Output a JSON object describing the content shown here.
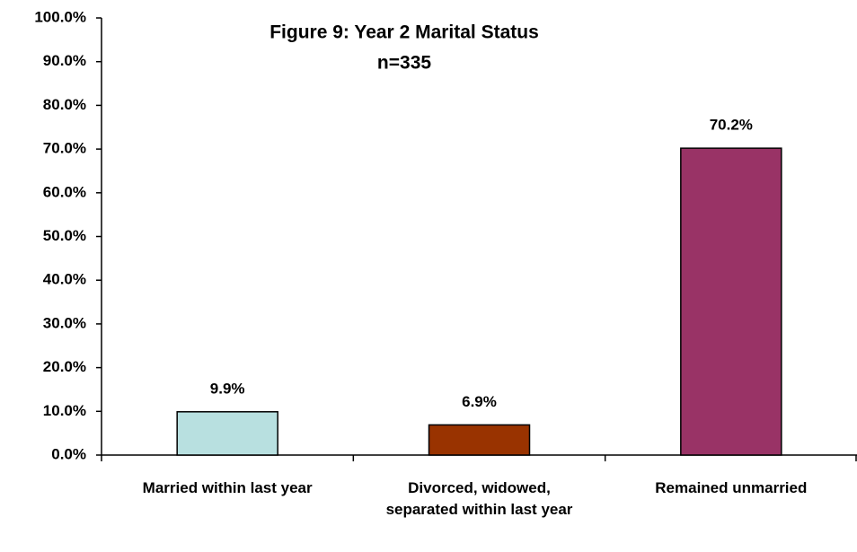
{
  "chart_data": {
    "type": "bar",
    "title": "Figure 9: Year 2 Marital Status",
    "subtitle": "n=335",
    "categories": [
      "Married within last year",
      "Divorced, widowed, separated within last year",
      "Remained unmarried"
    ],
    "values": [
      9.9,
      6.9,
      70.2
    ],
    "value_labels": [
      "9.9%",
      "6.9%",
      "70.2%"
    ],
    "colors": [
      "#b8e0e0",
      "#993300",
      "#993366"
    ],
    "ylim": [
      0,
      100
    ],
    "yticks": [
      {
        "value": 0,
        "label": "0.0%"
      },
      {
        "value": 10,
        "label": "10.0%"
      },
      {
        "value": 20,
        "label": "20.0%"
      },
      {
        "value": 30,
        "label": "30.0%"
      },
      {
        "value": 40,
        "label": "40.0%"
      },
      {
        "value": 50,
        "label": "50.0%"
      },
      {
        "value": 60,
        "label": "60.0%"
      },
      {
        "value": 70,
        "label": "70.0%"
      },
      {
        "value": 80,
        "label": "80.0%"
      },
      {
        "value": 90,
        "label": "90.0%"
      },
      {
        "value": 100,
        "label": "100.0%"
      }
    ],
    "grid": false
  }
}
